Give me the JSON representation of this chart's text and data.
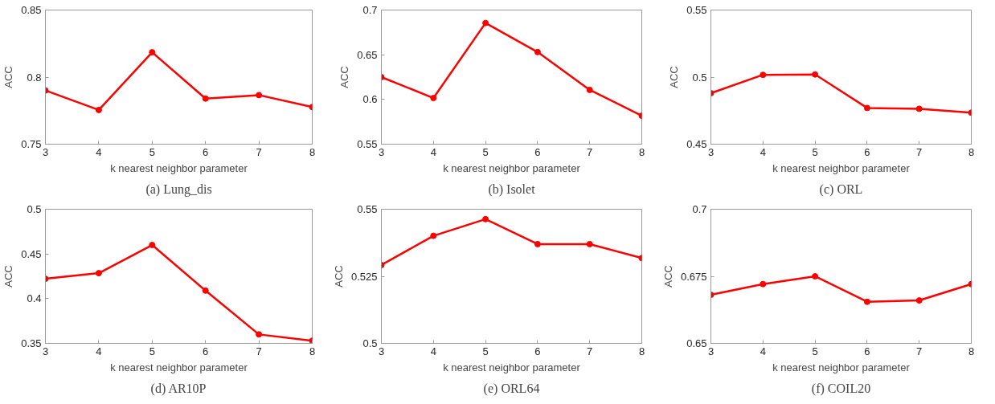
{
  "chart_data": [
    {
      "type": "line",
      "title": "(a) Lung_dis",
      "xlabel": "k nearest neighbor parameter",
      "ylabel": "ACC",
      "x": [
        3,
        4,
        5,
        6,
        7,
        8
      ],
      "series": [
        {
          "color": "#ff0000",
          "values": [
            0.79,
            0.7755,
            0.8185,
            0.784,
            0.7866,
            0.7777
          ]
        }
      ],
      "xlim": [
        3,
        8
      ],
      "xticks": [
        3,
        4,
        5,
        6,
        7,
        8
      ],
      "ylim": [
        0.75,
        0.85
      ],
      "yticks": [
        0.75,
        0.8,
        0.85
      ],
      "marker": "circle",
      "line_style": "solid"
    },
    {
      "type": "line",
      "title": "(b) Isolet",
      "xlabel": "k nearest neighbor parameter",
      "ylabel": "ACC",
      "x": [
        3,
        4,
        5,
        6,
        7,
        8
      ],
      "series": [
        {
          "color": "#ff0000",
          "values": [
            0.625,
            0.6016,
            0.6855,
            0.653,
            0.6107,
            0.5818
          ]
        }
      ],
      "xlim": [
        3,
        8
      ],
      "xticks": [
        3,
        4,
        5,
        6,
        7,
        8
      ],
      "ylim": [
        0.55,
        0.7
      ],
      "yticks": [
        0.55,
        0.6,
        0.65,
        0.7
      ],
      "marker": "circle",
      "line_style": "solid"
    },
    {
      "type": "line",
      "title": "(c) ORL",
      "xlabel": "k nearest neighbor parameter",
      "ylabel": "ACC",
      "x": [
        3,
        4,
        5,
        6,
        7,
        8
      ],
      "series": [
        {
          "color": "#ff0000",
          "values": [
            0.488,
            0.5017,
            0.502,
            0.477,
            0.4764,
            0.4735
          ]
        }
      ],
      "xlim": [
        3,
        8
      ],
      "xticks": [
        3,
        4,
        5,
        6,
        7,
        8
      ],
      "ylim": [
        0.45,
        0.55
      ],
      "yticks": [
        0.45,
        0.5,
        0.55
      ],
      "marker": "circle",
      "line_style": "solid"
    },
    {
      "type": "line",
      "title": "(d) AR10P",
      "xlabel": "k nearest neighbor parameter",
      "ylabel": "ACC",
      "x": [
        3,
        4,
        5,
        6,
        7,
        8
      ],
      "series": [
        {
          "color": "#ff0000",
          "values": [
            0.4222,
            0.4285,
            0.46,
            0.409,
            0.36,
            0.353
          ]
        }
      ],
      "xlim": [
        3,
        8
      ],
      "xticks": [
        3,
        4,
        5,
        6,
        7,
        8
      ],
      "ylim": [
        0.35,
        0.5
      ],
      "yticks": [
        0.35,
        0.4,
        0.45,
        0.5
      ],
      "marker": "circle",
      "line_style": "solid"
    },
    {
      "type": "line",
      "title": "(e) ORL64",
      "xlabel": "k nearest neighbor parameter",
      "ylabel": "ACC",
      "x": [
        3,
        4,
        5,
        6,
        7,
        8
      ],
      "series": [
        {
          "color": "#ff0000",
          "values": [
            0.5292,
            0.5401,
            0.5463,
            0.537,
            0.537,
            0.5318
          ]
        }
      ],
      "xlim": [
        3,
        8
      ],
      "xticks": [
        3,
        4,
        5,
        6,
        7,
        8
      ],
      "ylim": [
        0.5,
        0.55
      ],
      "yticks": [
        0.5,
        0.525,
        0.55
      ],
      "marker": "circle",
      "line_style": "solid"
    },
    {
      "type": "line",
      "title": "(f) COIL20",
      "xlabel": "k nearest neighbor parameter",
      "ylabel": "ACC",
      "x": [
        3,
        4,
        5,
        6,
        7,
        8
      ],
      "series": [
        {
          "color": "#ff0000",
          "values": [
            0.6681,
            0.6721,
            0.675,
            0.6655,
            0.666,
            0.6721
          ]
        }
      ],
      "xlim": [
        3,
        8
      ],
      "xticks": [
        3,
        4,
        5,
        6,
        7,
        8
      ],
      "ylim": [
        0.65,
        0.7
      ],
      "yticks": [
        0.65,
        0.675,
        0.7
      ],
      "marker": "circle",
      "line_style": "solid"
    }
  ]
}
